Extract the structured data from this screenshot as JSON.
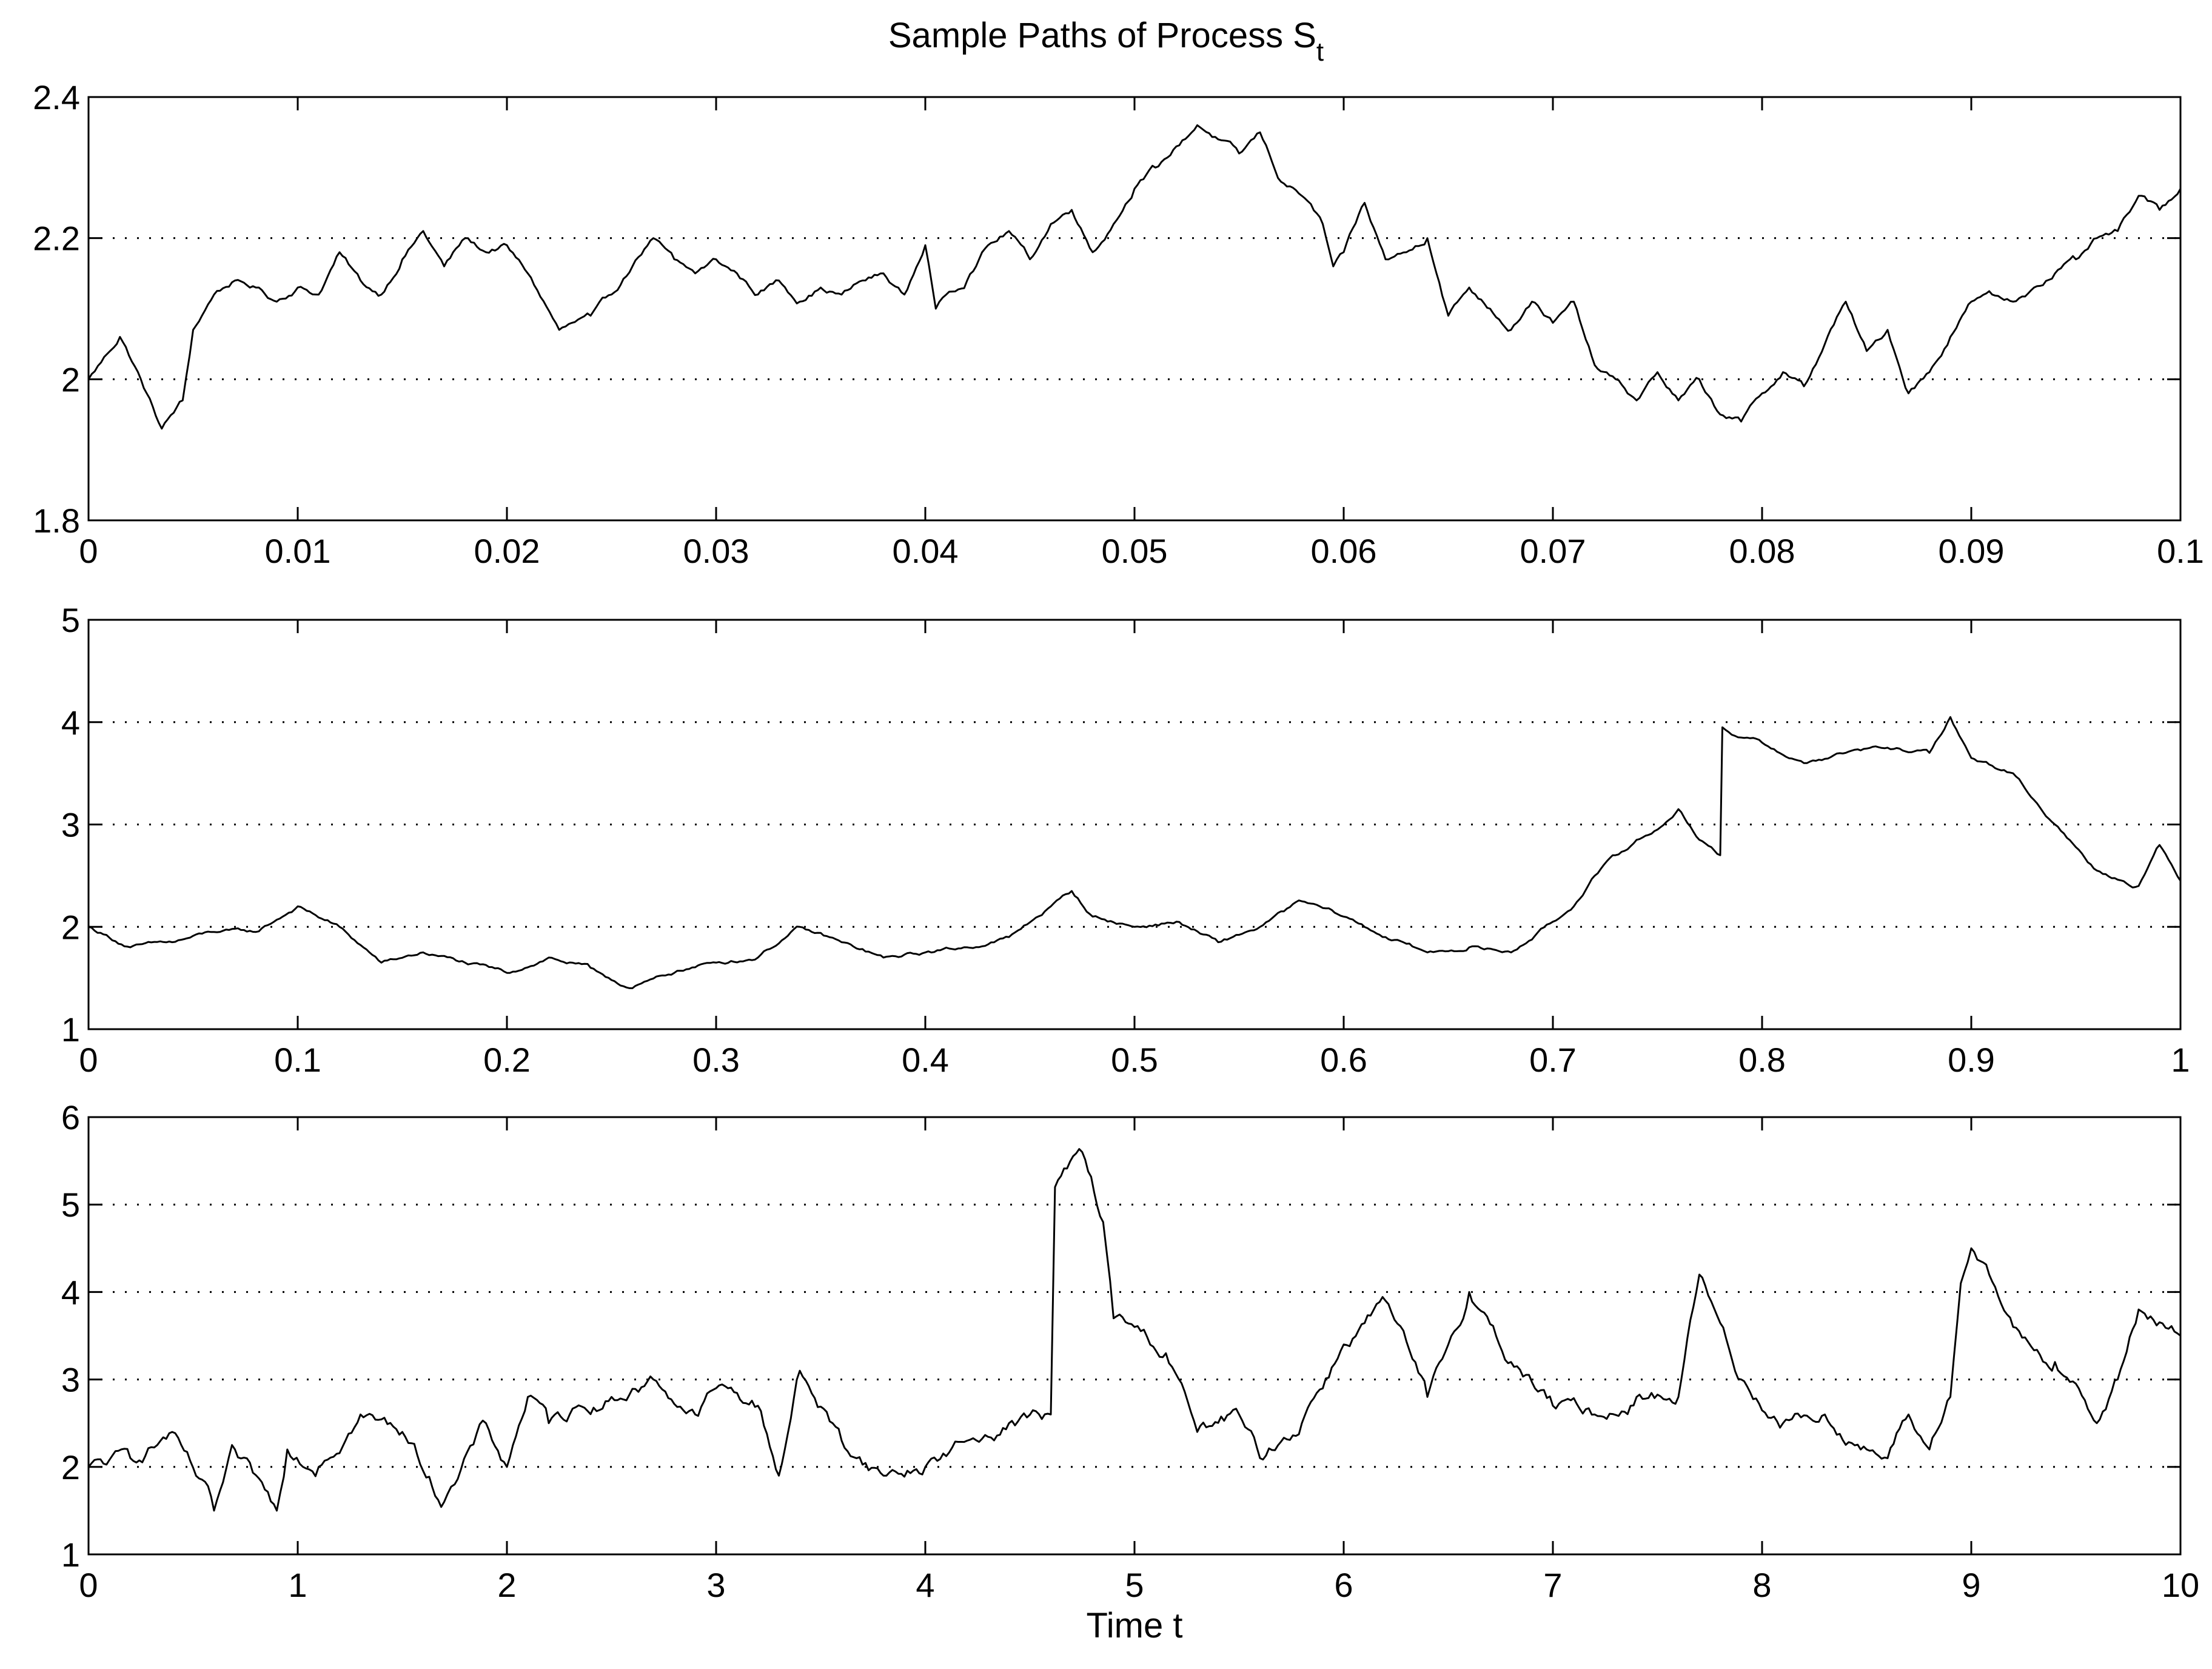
{
  "figure": {
    "title": "Sample Paths of Process S",
    "title_subscript": "t",
    "xlabel": "Time t",
    "line_color": "#000000",
    "grid_color": "#000000",
    "background": "#ffffff"
  },
  "chart_data": [
    {
      "type": "line",
      "title": "Sample Paths of Process S_t",
      "xlabel": "",
      "ylabel": "",
      "xlim": [
        0,
        0.1
      ],
      "ylim": [
        1.8,
        2.4
      ],
      "xticks": [
        "0",
        "0.01",
        "0.02",
        "0.03",
        "0.04",
        "0.05",
        "0.06",
        "0.07",
        "0.08",
        "0.09",
        "0.1"
      ],
      "yticks": [
        "1.8",
        "2",
        "2.2",
        "2.4"
      ],
      "grid": "horizontal dotted at 2 and 2.2",
      "series": [
        {
          "color": "#000000",
          "x": [
            0,
            0.0015,
            0.0025,
            0.0035,
            0.0045,
            0.005,
            0.006,
            0.007,
            0.008,
            0.009,
            0.01,
            0.011,
            0.012,
            0.013,
            0.014,
            0.015,
            0.016,
            0.017,
            0.018,
            0.019,
            0.02,
            0.021,
            0.0225,
            0.024,
            0.025,
            0.026,
            0.027,
            0.028,
            0.029,
            0.03,
            0.031,
            0.032,
            0.033,
            0.034,
            0.035,
            0.036,
            0.037,
            0.038,
            0.039,
            0.04,
            0.0405,
            0.041,
            0.042,
            0.043,
            0.044,
            0.045,
            0.046,
            0.047,
            0.048,
            0.049,
            0.05,
            0.051,
            0.052,
            0.053,
            0.054,
            0.055,
            0.056,
            0.057,
            0.058,
            0.059,
            0.0595,
            0.06,
            0.061,
            0.062,
            0.063,
            0.064,
            0.065,
            0.066,
            0.067,
            0.068,
            0.069,
            0.07,
            0.071,
            0.072,
            0.073,
            0.074,
            0.075,
            0.076,
            0.077,
            0.078,
            0.079,
            0.08,
            0.081,
            0.082,
            0.083,
            0.084,
            0.085,
            0.086,
            0.087,
            0.088,
            0.089,
            0.09,
            0.091,
            0.092,
            0.093,
            0.094,
            0.095,
            0.096,
            0.097,
            0.098,
            0.099,
            0.1
          ],
          "y": [
            2.0,
            2.06,
            2.0,
            1.93,
            1.97,
            2.07,
            2.12,
            2.14,
            2.13,
            2.11,
            2.13,
            2.12,
            2.18,
            2.14,
            2.12,
            2.17,
            2.21,
            2.16,
            2.2,
            2.18,
            2.19,
            2.15,
            2.07,
            2.09,
            2.12,
            2.16,
            2.2,
            2.17,
            2.15,
            2.17,
            2.15,
            2.12,
            2.14,
            2.11,
            2.13,
            2.12,
            2.14,
            2.15,
            2.12,
            2.19,
            2.1,
            2.12,
            2.14,
            2.19,
            2.21,
            2.17,
            2.22,
            2.24,
            2.18,
            2.22,
            2.27,
            2.3,
            2.33,
            2.36,
            2.34,
            2.32,
            2.35,
            2.28,
            2.26,
            2.22,
            2.16,
            2.18,
            2.25,
            2.17,
            2.18,
            2.2,
            2.09,
            2.13,
            2.1,
            2.07,
            2.11,
            2.08,
            2.11,
            2.02,
            2.0,
            1.97,
            2.01,
            1.97,
            2.0,
            1.95,
            1.94,
            1.98,
            2.01,
            1.99,
            2.05,
            2.11,
            2.04,
            2.07,
            1.98,
            2.01,
            2.06,
            2.11,
            2.12,
            2.11,
            2.13,
            2.15,
            2.17,
            2.2,
            2.21,
            2.26,
            2.24,
            2.27
          ]
        }
      ]
    },
    {
      "type": "line",
      "xlabel": "",
      "ylabel": "",
      "xlim": [
        0,
        1
      ],
      "ylim": [
        1,
        5
      ],
      "xticks": [
        "0",
        "0.1",
        "0.2",
        "0.3",
        "0.4",
        "0.5",
        "0.6",
        "0.7",
        "0.8",
        "0.9",
        "1"
      ],
      "yticks": [
        "1",
        "2",
        "3",
        "4",
        "5"
      ],
      "grid": "horizontal dotted at 2, 3 and 4",
      "series": [
        {
          "color": "#000000",
          "x": [
            0,
            0.02,
            0.04,
            0.06,
            0.08,
            0.1,
            0.12,
            0.14,
            0.16,
            0.18,
            0.2,
            0.22,
            0.24,
            0.26,
            0.28,
            0.3,
            0.32,
            0.34,
            0.36,
            0.38,
            0.4,
            0.42,
            0.44,
            0.46,
            0.47,
            0.48,
            0.5,
            0.52,
            0.54,
            0.56,
            0.58,
            0.6,
            0.62,
            0.64,
            0.66,
            0.68,
            0.7,
            0.71,
            0.72,
            0.73,
            0.74,
            0.75,
            0.76,
            0.77,
            0.78,
            0.781,
            0.79,
            0.8,
            0.82,
            0.84,
            0.86,
            0.88,
            0.89,
            0.9,
            0.92,
            0.94,
            0.96,
            0.98,
            0.99,
            1.0
          ],
          "y": [
            2.0,
            1.8,
            1.85,
            1.95,
            1.95,
            2.2,
            2.0,
            1.65,
            1.75,
            1.65,
            1.55,
            1.7,
            1.6,
            1.4,
            1.55,
            1.65,
            1.7,
            2.0,
            1.85,
            1.7,
            1.75,
            1.8,
            1.9,
            2.2,
            2.35,
            2.1,
            2.0,
            2.05,
            1.85,
            2.0,
            2.25,
            2.1,
            1.9,
            1.75,
            1.8,
            1.75,
            2.05,
            2.2,
            2.5,
            2.7,
            2.85,
            2.95,
            3.15,
            2.85,
            2.7,
            3.95,
            3.85,
            3.8,
            3.6,
            3.7,
            3.75,
            3.7,
            4.05,
            3.65,
            3.5,
            3.0,
            2.55,
            2.4,
            2.8,
            2.45
          ]
        }
      ]
    },
    {
      "type": "line",
      "xlabel": "Time t",
      "ylabel": "",
      "xlim": [
        0,
        10
      ],
      "ylim": [
        1,
        6
      ],
      "xticks": [
        "0",
        "1",
        "2",
        "3",
        "4",
        "5",
        "6",
        "7",
        "8",
        "9",
        "10"
      ],
      "yticks": [
        "1",
        "2",
        "3",
        "4",
        "5",
        "6"
      ],
      "grid": "horizontal dotted at 2, 3, 4 and 5",
      "series": [
        {
          "color": "#000000",
          "x": [
            0,
            0.2,
            0.4,
            0.6,
            0.7,
            0.9,
            0.95,
            1.1,
            1.3,
            1.5,
            1.7,
            1.75,
            1.9,
            2.0,
            2.1,
            2.2,
            2.3,
            2.5,
            2.7,
            2.9,
            3.0,
            3.2,
            3.3,
            3.4,
            3.6,
            3.8,
            4.0,
            4.2,
            4.4,
            4.6,
            4.62,
            4.75,
            4.85,
            4.9,
            5.0,
            5.15,
            5.3,
            5.5,
            5.6,
            5.8,
            6.0,
            6.2,
            6.4,
            6.6,
            6.8,
            7.0,
            7.2,
            7.4,
            7.6,
            7.7,
            7.9,
            8.1,
            8.3,
            8.5,
            8.6,
            8.7,
            8.8,
            8.9,
            8.95,
            9.0,
            9.2,
            9.4,
            9.6,
            9.7,
            9.8,
            10.0
          ],
          "y": [
            2.0,
            2.1,
            2.4,
            1.5,
            2.2,
            1.5,
            2.2,
            2.0,
            2.6,
            2.4,
            1.6,
            1.8,
            2.5,
            2.0,
            2.8,
            2.5,
            2.6,
            2.8,
            3.0,
            2.6,
            2.9,
            2.7,
            1.9,
            3.1,
            2.3,
            1.9,
            2.0,
            2.3,
            2.5,
            2.6,
            5.2,
            5.6,
            4.8,
            3.7,
            3.6,
            3.3,
            2.4,
            2.6,
            2.1,
            2.5,
            3.4,
            3.9,
            2.8,
            4.0,
            3.2,
            2.7,
            2.6,
            2.8,
            2.8,
            4.2,
            3.0,
            2.5,
            2.6,
            2.2,
            2.1,
            2.6,
            2.2,
            2.8,
            4.1,
            4.5,
            3.6,
            3.2,
            2.5,
            3.0,
            3.8,
            3.5
          ]
        }
      ]
    }
  ]
}
